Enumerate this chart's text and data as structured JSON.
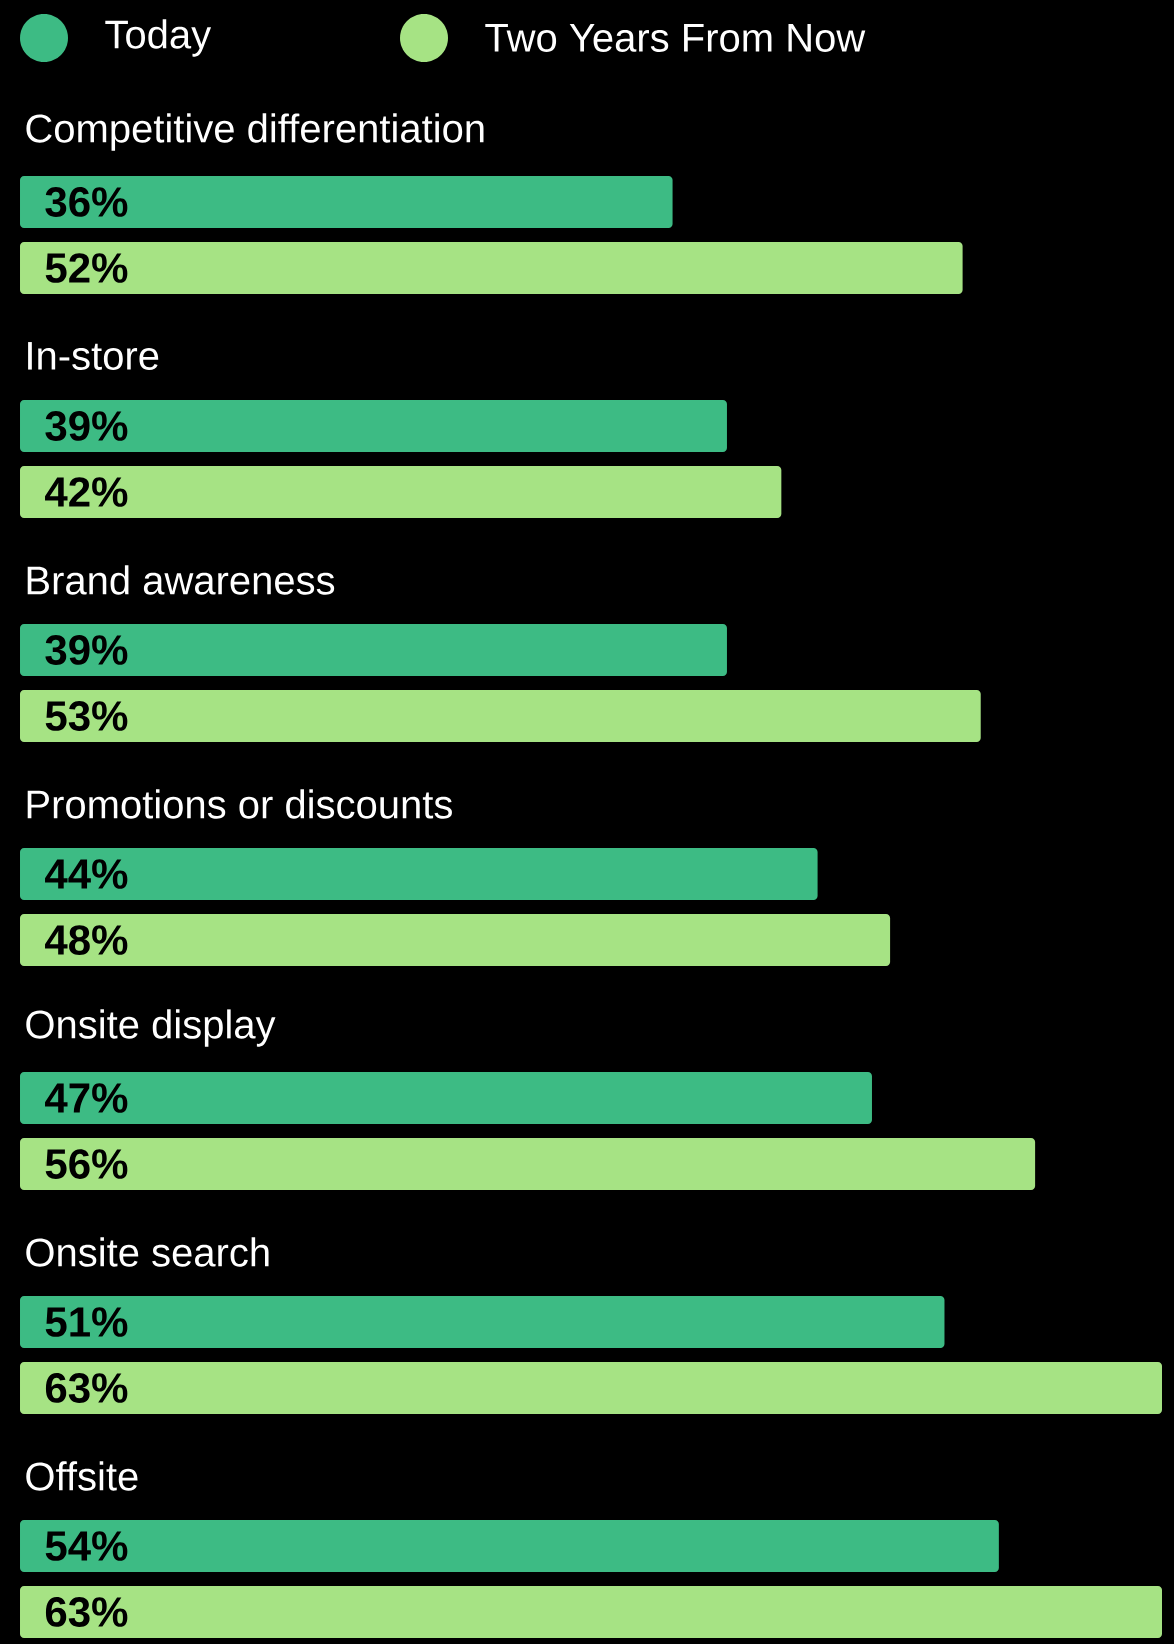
{
  "chart_data": {
    "type": "bar",
    "orientation": "horizontal",
    "legend": "top left",
    "categories": [
      "Competitive differentiation",
      "In-store",
      "Brand awareness",
      "Promotions or discounts",
      "Onsite display",
      "Onsite search",
      "Offsite"
    ],
    "series": [
      {
        "name": "Today",
        "color": "#3dbb84",
        "values": [
          36,
          39,
          39,
          44,
          47,
          51,
          54
        ],
        "value_labels": [
          "36%",
          "39%",
          "39%",
          "44%",
          "47%",
          "51%",
          "54%"
        ]
      },
      {
        "name": "Two Years From Now",
        "color": "#a6e384",
        "values": [
          52,
          42,
          53,
          48,
          56,
          63,
          63
        ],
        "value_labels": [
          "52%",
          "42%",
          "53%",
          "48%",
          "56%",
          "63%",
          "63%"
        ]
      }
    ]
  }
}
